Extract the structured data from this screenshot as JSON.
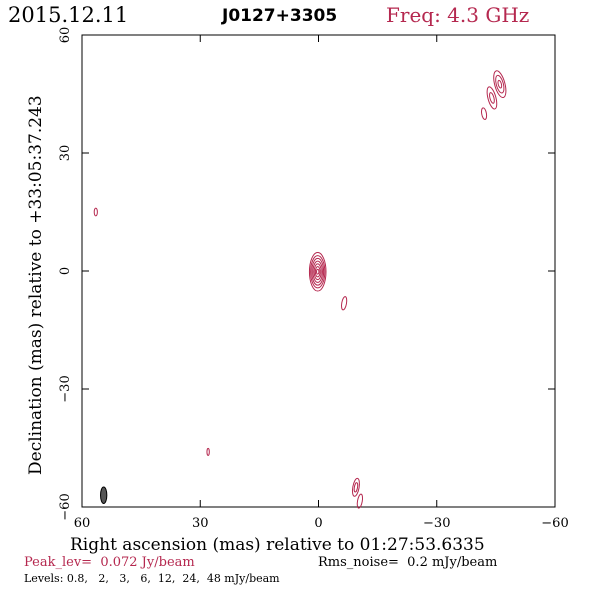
{
  "header": {
    "date": "2015.12.11",
    "source": "J0127+3305",
    "freq": "Freq: 4.3 GHz"
  },
  "footer": {
    "peak": "Peak_lev=  0.072 Jy/beam",
    "rms": "Rms_noise=  0.2 mJy/beam",
    "levels": "Levels: 0.8,   2,   3,   6,  12,  24,  48 mJy/beam"
  },
  "colors": {
    "contour": "#b5284f",
    "accent_text": "#b5284f",
    "axis": "#000000",
    "beam": "#555555"
  },
  "chart_data": {
    "type": "contour",
    "xlabel": "Right ascension (mas) relative to 01:27:53.6335",
    "ylabel": "Declination (mas) relative to +33:05:37.243",
    "xlim": [
      60,
      -60
    ],
    "ylim": [
      -60,
      60
    ],
    "xticks": [
      60,
      30,
      0,
      -30,
      -60
    ],
    "yticks": [
      -60,
      -30,
      0,
      30,
      60
    ],
    "xticklabels": [
      "60",
      "30",
      "0",
      "−30",
      "−60"
    ],
    "yticklabels": [
      "−60",
      "−30",
      "0",
      "30",
      "60"
    ],
    "levels_mJy": [
      0.8,
      2,
      3,
      6,
      12,
      24,
      48
    ],
    "peak_Jy": 0.072,
    "rms_mJy": 0.2,
    "beam": {
      "x": 54.5,
      "y": -57,
      "major_mas": 4.2,
      "minor_mas": 1.6,
      "pa_deg": 0
    },
    "components": [
      {
        "x": 0.2,
        "y": -0.2,
        "rings": [
          [
            2.1,
            4.9
          ],
          [
            1.8,
            4.1
          ],
          [
            1.5,
            3.4
          ],
          [
            1.2,
            2.7
          ],
          [
            0.9,
            2.0
          ],
          [
            0.6,
            1.3
          ],
          [
            0.3,
            0.6
          ]
        ],
        "pa_deg": 0
      },
      {
        "x": -46.0,
        "y": 47.5,
        "rings": [
          [
            1.3,
            3.5
          ],
          [
            0.9,
            2.3
          ],
          [
            0.4,
            1.0
          ]
        ],
        "pa_deg": -15
      },
      {
        "x": -44.0,
        "y": 44.0,
        "rings": [
          [
            1.0,
            2.9
          ],
          [
            0.5,
            1.4
          ]
        ],
        "pa_deg": -15
      },
      {
        "x": -42.0,
        "y": 40.0,
        "rings": [
          [
            0.6,
            1.5
          ]
        ],
        "pa_deg": -10
      },
      {
        "x": -9.5,
        "y": -55.0,
        "rings": [
          [
            0.8,
            2.3
          ],
          [
            0.4,
            1.2
          ]
        ],
        "pa_deg": 10
      },
      {
        "x": -10.5,
        "y": -58.5,
        "rings": [
          [
            0.6,
            1.8
          ]
        ],
        "pa_deg": 10
      },
      {
        "x": -6.5,
        "y": -8.2,
        "rings": [
          [
            0.6,
            1.7
          ]
        ],
        "pa_deg": 10
      },
      {
        "x": 56.5,
        "y": 15.0,
        "rings": [
          [
            0.4,
            1.0
          ]
        ],
        "pa_deg": 0
      },
      {
        "x": 28.0,
        "y": -46.0,
        "rings": [
          [
            0.3,
            0.9
          ]
        ],
        "pa_deg": 0
      }
    ]
  }
}
